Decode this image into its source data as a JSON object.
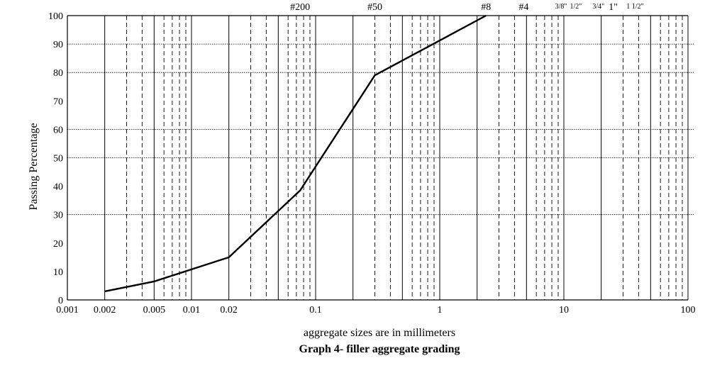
{
  "chart_data": {
    "type": "line",
    "title": "Graph 4- filler aggregate grading",
    "xlabel": "aggregate sizes are in millimeters",
    "ylabel": "Passing Percentage",
    "x_scale": "log",
    "xlim": [
      0.001,
      100
    ],
    "ylim": [
      0,
      100
    ],
    "x_tick_labels": [
      "0.001",
      "0.002",
      "0.005",
      "0.01",
      "0.02",
      "0.1",
      "1",
      "10",
      "100"
    ],
    "y_tick_labels": [
      "0",
      "10",
      "20",
      "30",
      "40",
      "50",
      "60",
      "70",
      "80",
      "90",
      "100"
    ],
    "grid": true,
    "sieve_labels": [
      "#200",
      "#50",
      "#8",
      "#4",
      "3/8\"",
      "1/2\"",
      "3/4\"",
      "1\"",
      "1 1/2\""
    ],
    "series": [
      {
        "x": [
          0.002,
          0.005,
          0.02,
          0.075,
          0.3,
          2.36
        ],
        "y": [
          3,
          6.5,
          15,
          38.5,
          79,
          100
        ]
      }
    ]
  }
}
